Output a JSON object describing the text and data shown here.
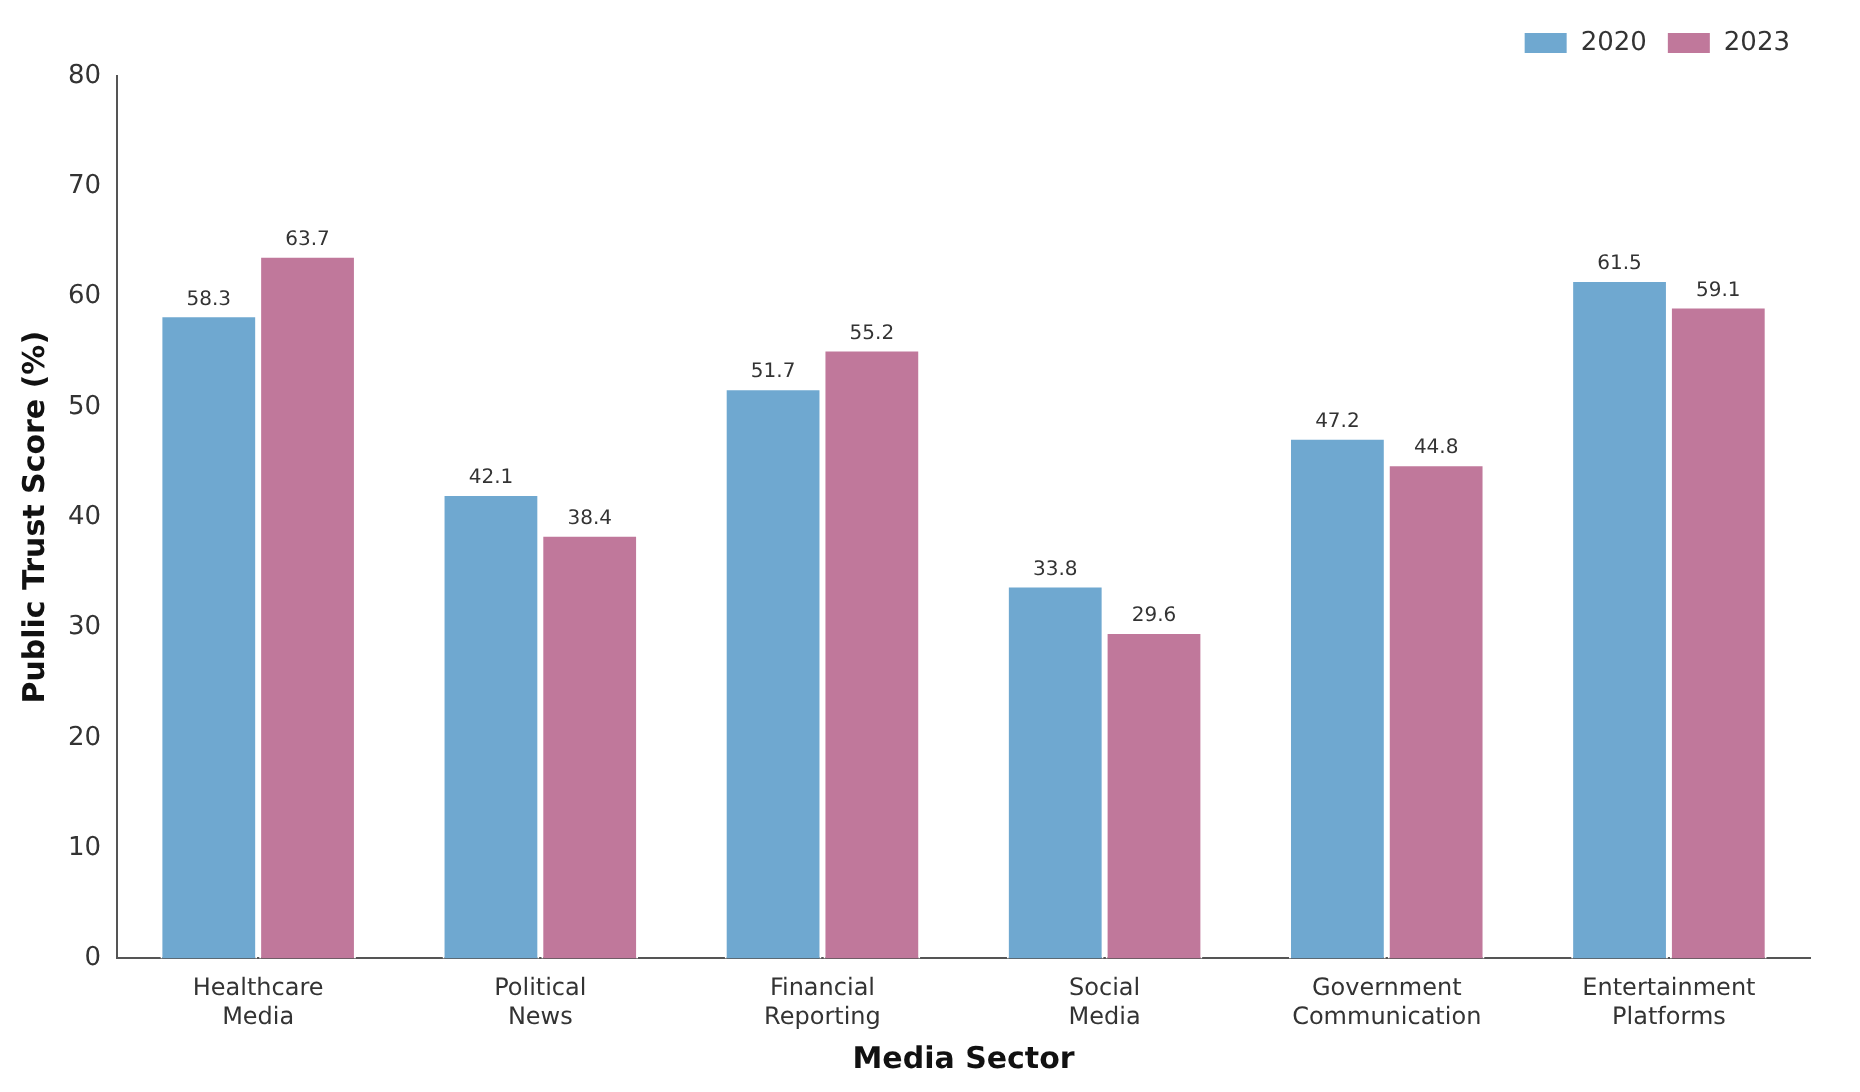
{
  "chart_data": {
    "type": "bar",
    "xlabel": "Media Sector",
    "ylabel": "Public Trust Score (%)",
    "categories": [
      "Healthcare Media",
      "Political News",
      "Financial Reporting",
      "Social Media",
      "Government Communication",
      "Entertainment Platforms"
    ],
    "series": [
      {
        "name": "2020",
        "color": "#6fa8d0",
        "values": [
          58.3,
          42.1,
          51.7,
          33.8,
          47.2,
          61.5
        ]
      },
      {
        "name": "2023",
        "color": "#c0789b",
        "values": [
          63.7,
          38.4,
          55.2,
          29.6,
          44.8,
          59.1
        ]
      }
    ],
    "ylim": [
      0,
      80
    ],
    "yticks": [
      0,
      10,
      20,
      30,
      40,
      50,
      60,
      70,
      80
    ],
    "grid": false,
    "legend": "top right",
    "data_labels": true
  }
}
